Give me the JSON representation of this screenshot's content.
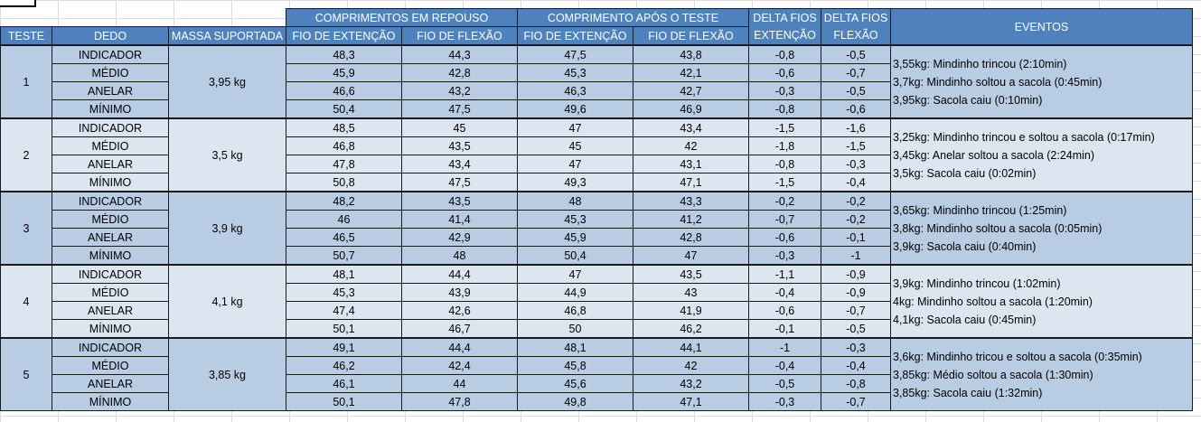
{
  "header": {
    "group_repouso": "COMPRIMENTOS EM REPOUSO",
    "group_apos": "COMPRIMENTO APÓS O TESTE",
    "delta_fios_1": "DELTA FIOS",
    "delta_fios_2": "DELTA FIOS",
    "eventos": "EVENTOS",
    "teste": "TESTE",
    "dedo": "DEDO",
    "massa": "MASSA SUPORTADA",
    "fio_ext_1": "FIO DE EXTENÇÃO",
    "fio_flex_1": "FIO DE FLEXÃO",
    "fio_ext_2": "FIO DE EXTENÇÃO",
    "fio_flex_2": "FIO DE FLEXÃO",
    "extencao": "EXTENÇÃO",
    "flexao": "FLEXÃO"
  },
  "tests": [
    {
      "teste": "1",
      "massa": "3,95 kg",
      "rows": [
        {
          "dedo": "INDICADOR",
          "rep_ext": "48,3",
          "rep_flex": "44,3",
          "apos_ext": "47,5",
          "apos_flex": "43,8",
          "d_ext": "-0,8",
          "d_flex": "-0,5"
        },
        {
          "dedo": "MÉDIO",
          "rep_ext": "45,9",
          "rep_flex": "42,8",
          "apos_ext": "45,3",
          "apos_flex": "42,1",
          "d_ext": "-0,6",
          "d_flex": "-0,7"
        },
        {
          "dedo": "ANELAR",
          "rep_ext": "46,6",
          "rep_flex": "43,2",
          "apos_ext": "46,3",
          "apos_flex": "42,7",
          "d_ext": "-0,3",
          "d_flex": "-0,5"
        },
        {
          "dedo": "MÍNIMO",
          "rep_ext": "50,4",
          "rep_flex": "47,5",
          "apos_ext": "49,6",
          "apos_flex": "46,9",
          "d_ext": "-0,8",
          "d_flex": "-0,6"
        }
      ],
      "eventos": [
        "3,55kg: Mindinho trincou (2:10min)",
        "3,7kg: Mindinho soltou a sacola (0:45min)",
        "3,95kg: Sacola caiu (0:10min)"
      ]
    },
    {
      "teste": "2",
      "massa": "3,5 kg",
      "rows": [
        {
          "dedo": "INDICADOR",
          "rep_ext": "48,5",
          "rep_flex": "45",
          "apos_ext": "47",
          "apos_flex": "43,4",
          "d_ext": "-1,5",
          "d_flex": "-1,6"
        },
        {
          "dedo": "MÉDIO",
          "rep_ext": "46,8",
          "rep_flex": "43,5",
          "apos_ext": "45",
          "apos_flex": "42",
          "d_ext": "-1,8",
          "d_flex": "-1,5"
        },
        {
          "dedo": "ANELAR",
          "rep_ext": "47,8",
          "rep_flex": "43,4",
          "apos_ext": "47",
          "apos_flex": "43,1",
          "d_ext": "-0,8",
          "d_flex": "-0,3"
        },
        {
          "dedo": "MÍNIMO",
          "rep_ext": "50,8",
          "rep_flex": "47,5",
          "apos_ext": "49,3",
          "apos_flex": "47,1",
          "d_ext": "-1,5",
          "d_flex": "-0,4"
        }
      ],
      "eventos": [
        "3,25kg: Mindinho trincou e soltou a sacola (0:17min)",
        "3,45kg: Anelar soltou a sacola (2:24min)",
        "3,5kg: Sacola caiu (0:02min)"
      ]
    },
    {
      "teste": "3",
      "massa": "3,9 kg",
      "rows": [
        {
          "dedo": "INDICADOR",
          "rep_ext": "48,2",
          "rep_flex": "43,5",
          "apos_ext": "48",
          "apos_flex": "43,3",
          "d_ext": "-0,2",
          "d_flex": "-0,2"
        },
        {
          "dedo": "MÉDIO",
          "rep_ext": "46",
          "rep_flex": "41,4",
          "apos_ext": "45,3",
          "apos_flex": "41,2",
          "d_ext": "-0,7",
          "d_flex": "-0,2"
        },
        {
          "dedo": "ANELAR",
          "rep_ext": "46,5",
          "rep_flex": "42,9",
          "apos_ext": "45,9",
          "apos_flex": "42,8",
          "d_ext": "-0,6",
          "d_flex": "-0,1"
        },
        {
          "dedo": "MÍNIMO",
          "rep_ext": "50,7",
          "rep_flex": "48",
          "apos_ext": "50,4",
          "apos_flex": "47",
          "d_ext": "-0,3",
          "d_flex": "-1"
        }
      ],
      "eventos": [
        "3,65kg: Mindinho trincou (1:25min)",
        "3,8kg: Mindinho soltou a sacola (0:05min)",
        "3,9kg: Sacola caiu (0:40min)"
      ]
    },
    {
      "teste": "4",
      "massa": "4,1 kg",
      "rows": [
        {
          "dedo": "INDICADOR",
          "rep_ext": "48,1",
          "rep_flex": "44,4",
          "apos_ext": "47",
          "apos_flex": "43,5",
          "d_ext": "-1,1",
          "d_flex": "-0,9"
        },
        {
          "dedo": "MÉDIO",
          "rep_ext": "45,3",
          "rep_flex": "43,9",
          "apos_ext": "44,9",
          "apos_flex": "43",
          "d_ext": "-0,4",
          "d_flex": "-0,9"
        },
        {
          "dedo": "ANELAR",
          "rep_ext": "47,4",
          "rep_flex": "42,6",
          "apos_ext": "46,8",
          "apos_flex": "41,9",
          "d_ext": "-0,6",
          "d_flex": "-0,7"
        },
        {
          "dedo": "MÍNIMO",
          "rep_ext": "50,1",
          "rep_flex": "46,7",
          "apos_ext": "50",
          "apos_flex": "46,2",
          "d_ext": "-0,1",
          "d_flex": "-0,5"
        }
      ],
      "eventos": [
        "3,9kg: Mindinho trincou (1:02min)",
        "4kg: Mindinho soltou a sacola (1:20min)",
        "4,1kg: Sacola caiu (0:45min)"
      ]
    },
    {
      "teste": "5",
      "massa": "3,85 kg",
      "rows": [
        {
          "dedo": "INDICADOR",
          "rep_ext": "49,1",
          "rep_flex": "44,4",
          "apos_ext": "48,1",
          "apos_flex": "44,1",
          "d_ext": "-1",
          "d_flex": "-0,3"
        },
        {
          "dedo": "MÉDIO",
          "rep_ext": "46,2",
          "rep_flex": "42,4",
          "apos_ext": "45,8",
          "apos_flex": "42",
          "d_ext": "-0,4",
          "d_flex": "-0,4"
        },
        {
          "dedo": "ANELAR",
          "rep_ext": "46,1",
          "rep_flex": "44",
          "apos_ext": "45,6",
          "apos_flex": "43,2",
          "d_ext": "-0,5",
          "d_flex": "-0,8"
        },
        {
          "dedo": "MÍNIMO",
          "rep_ext": "50,1",
          "rep_flex": "47,8",
          "apos_ext": "49,8",
          "apos_flex": "47,1",
          "d_ext": "-0,3",
          "d_flex": "-0,7"
        }
      ],
      "eventos": [
        "3,6kg: Mindinho tricou e soltou a sacola (0:35min)",
        "3,85kg: Médio soltou a sacola (1:30min)",
        "3,85kg: Sacola caiu (1:32min)"
      ]
    }
  ]
}
